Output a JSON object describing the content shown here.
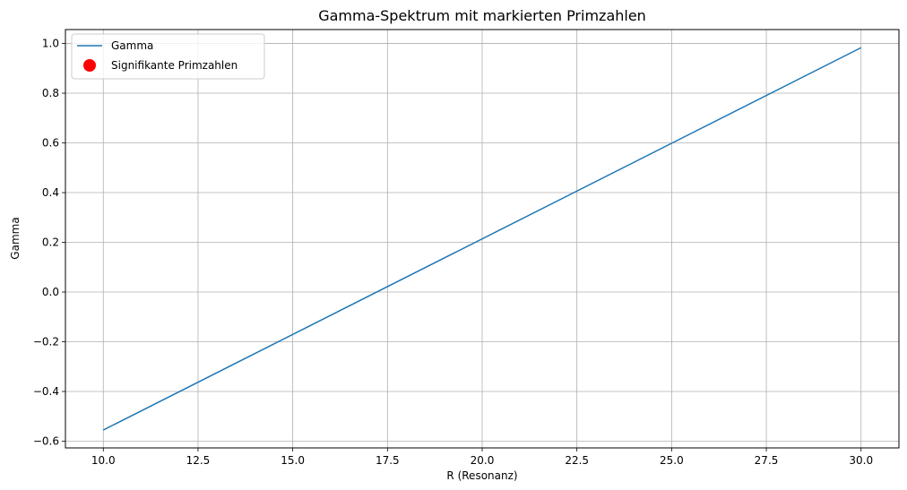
{
  "chart_data": {
    "type": "line",
    "title": "Gamma-Spektrum mit markierten Primzahlen",
    "xlabel": "R (Resonanz)",
    "ylabel": "Gamma",
    "xlim": [
      9.0,
      31.0
    ],
    "ylim": [
      -0.627,
      1.056
    ],
    "grid": true,
    "legend_position": "top-left",
    "x_ticks": [
      10.0,
      12.5,
      15.0,
      17.5,
      20.0,
      22.5,
      25.0,
      27.5,
      30.0
    ],
    "x_tick_labels": [
      "10.0",
      "12.5",
      "15.0",
      "17.5",
      "20.0",
      "22.5",
      "25.0",
      "27.5",
      "30.0"
    ],
    "y_ticks": [
      -0.6,
      -0.4,
      -0.2,
      0.0,
      0.2,
      0.4,
      0.6,
      0.8,
      1.0
    ],
    "y_tick_labels": [
      "−0.6",
      "−0.4",
      "−0.2",
      "0.0",
      "0.2",
      "0.4",
      "0.6",
      "0.8",
      "1.0"
    ],
    "series": [
      {
        "name": "Gamma",
        "kind": "line",
        "color": "#1f77b4",
        "x": [
          10.0,
          30.0
        ],
        "y": [
          -0.555,
          0.983
        ]
      },
      {
        "name": "Signifikante Primzahlen",
        "kind": "scatter",
        "color": "#ff0000",
        "x": [],
        "y": []
      }
    ]
  }
}
